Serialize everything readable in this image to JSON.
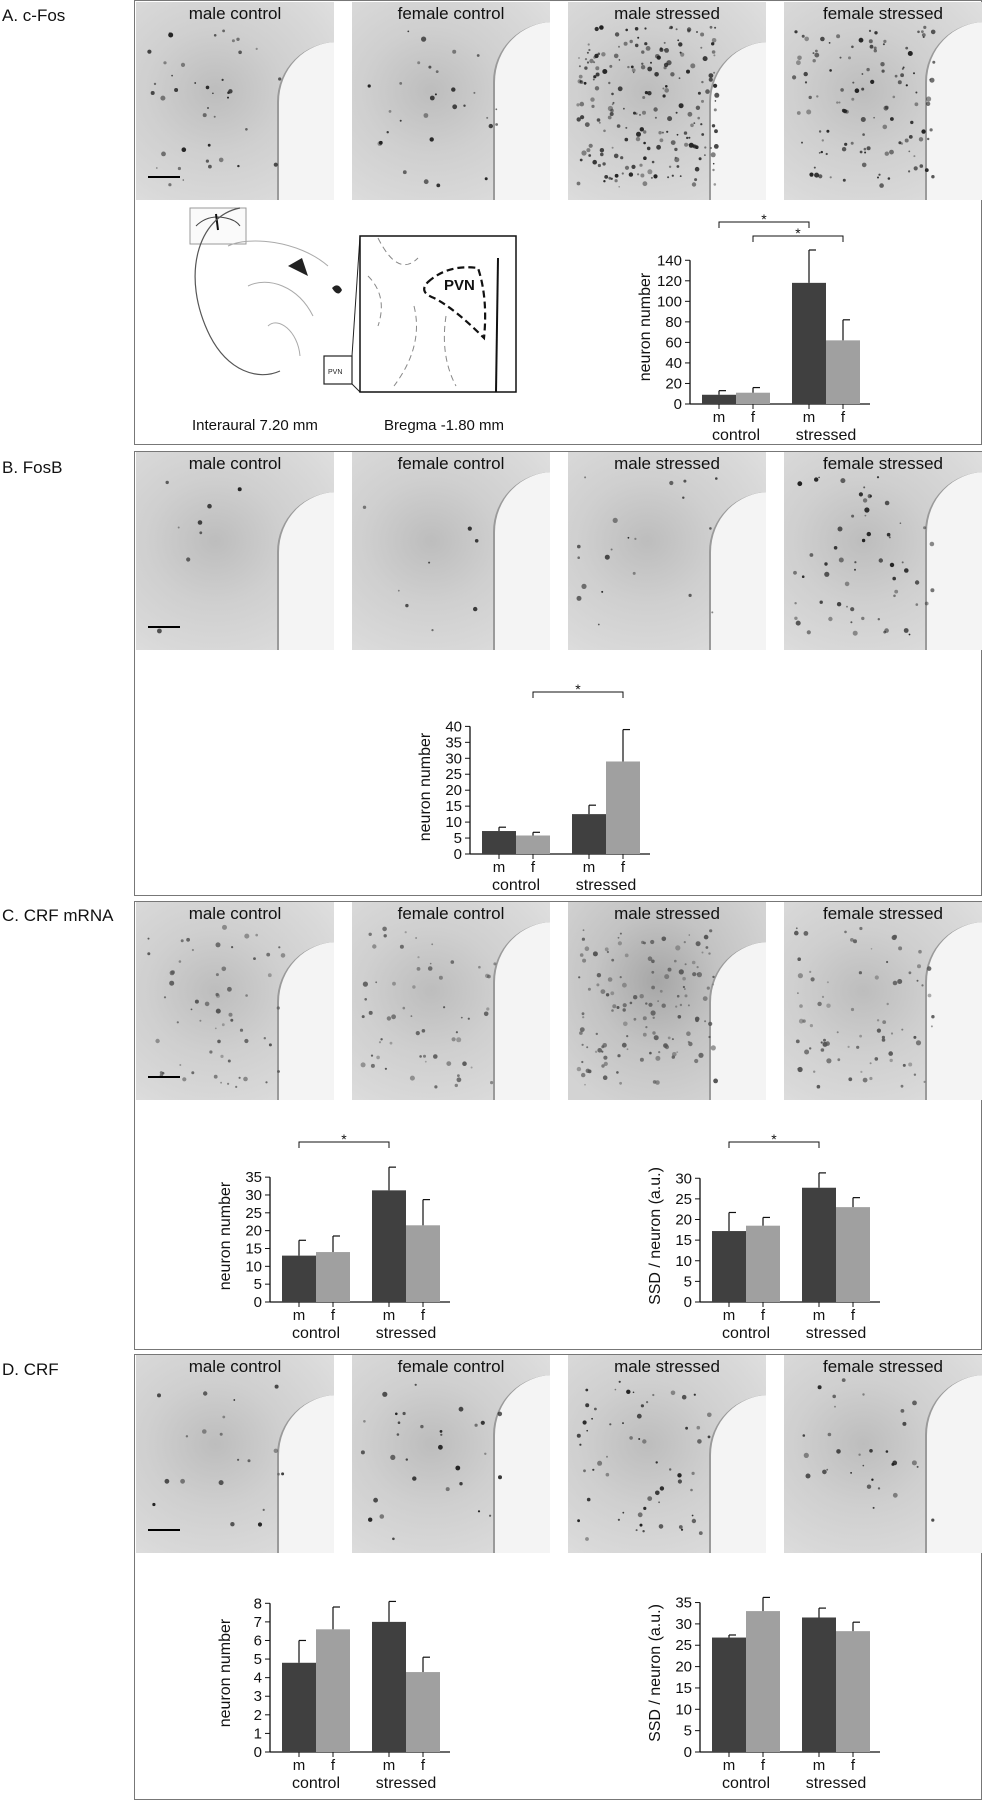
{
  "panels": [
    {
      "label": "A. c-Fos"
    },
    {
      "label": "B. FosB"
    },
    {
      "label": "C. CRF mRNA"
    },
    {
      "label": "D. CRF"
    }
  ],
  "image_titles": [
    "male control",
    "female control",
    "male stressed",
    "female stressed"
  ],
  "atlas": {
    "interaural": "Interaural 7.20 mm",
    "bregma": "Bregma -1.80 mm",
    "region_label": "PVN",
    "small_region_label": "PVN"
  },
  "colors": {
    "male": "#404040",
    "female": "#a0a0a0"
  },
  "chart_data": [
    {
      "type": "bar",
      "panel": "A",
      "categories": [
        "m",
        "f",
        "m",
        "f"
      ],
      "groups": [
        "control",
        "stressed"
      ],
      "values": [
        9,
        11,
        118,
        62
      ],
      "errors": [
        4,
        5,
        32,
        20
      ],
      "ylabel": "neuron number",
      "ylim": [
        0,
        150
      ],
      "yticks": [
        0,
        20,
        40,
        60,
        80,
        100,
        120,
        140
      ],
      "significance": [
        [
          0,
          2
        ],
        [
          1,
          3
        ]
      ]
    },
    {
      "type": "bar",
      "panel": "B",
      "categories": [
        "m",
        "f",
        "m",
        "f"
      ],
      "groups": [
        "control",
        "stressed"
      ],
      "values": [
        7.2,
        5.8,
        12.5,
        29
      ],
      "errors": [
        1.2,
        1.0,
        2.8,
        10
      ],
      "ylabel": "neuron number",
      "ylim": [
        0,
        42
      ],
      "yticks": [
        0,
        5,
        10,
        15,
        20,
        25,
        30,
        35,
        40
      ],
      "significance": [
        [
          1,
          3
        ]
      ]
    },
    {
      "type": "bar",
      "panel": "C-left",
      "categories": [
        "m",
        "f",
        "m",
        "f"
      ],
      "groups": [
        "control",
        "stressed"
      ],
      "values": [
        13,
        14,
        31.3,
        21.5
      ],
      "errors": [
        4.3,
        4.5,
        6.5,
        7.2
      ],
      "ylabel": "neuron number",
      "ylim": [
        0,
        37
      ],
      "yticks": [
        0,
        5,
        10,
        15,
        20,
        25,
        30,
        35
      ],
      "significance": [
        [
          0,
          2
        ]
      ]
    },
    {
      "type": "bar",
      "panel": "C-right",
      "categories": [
        "m",
        "f",
        "m",
        "f"
      ],
      "groups": [
        "control",
        "stressed"
      ],
      "values": [
        17.2,
        18.5,
        27.7,
        23
      ],
      "errors": [
        4.5,
        2,
        3.6,
        2.3
      ],
      "ylabel": "SSD / neuron (a.u.)",
      "ylim": [
        0,
        32
      ],
      "yticks": [
        0,
        5,
        10,
        15,
        20,
        25,
        30
      ],
      "significance": [
        [
          0,
          2
        ]
      ]
    },
    {
      "type": "bar",
      "panel": "D-left",
      "categories": [
        "m",
        "f",
        "m",
        "f"
      ],
      "groups": [
        "control",
        "stressed"
      ],
      "values": [
        4.8,
        6.6,
        7.0,
        4.3
      ],
      "errors": [
        1.2,
        1.2,
        1.1,
        0.8
      ],
      "ylabel": "neuron number",
      "ylim": [
        0,
        8.5
      ],
      "yticks": [
        0,
        1,
        2,
        3,
        4,
        5,
        6,
        7,
        8
      ],
      "significance": []
    },
    {
      "type": "bar",
      "panel": "D-right",
      "categories": [
        "m",
        "f",
        "m",
        "f"
      ],
      "groups": [
        "control",
        "stressed"
      ],
      "values": [
        26.8,
        33,
        31.5,
        28.3
      ],
      "errors": [
        0.6,
        3.2,
        2.2,
        2.1
      ],
      "ylabel": "SSD / neuron (a.u.)",
      "ylim": [
        0,
        37
      ],
      "yticks": [
        0,
        5,
        10,
        15,
        20,
        25,
        30,
        35
      ],
      "significance": []
    }
  ]
}
